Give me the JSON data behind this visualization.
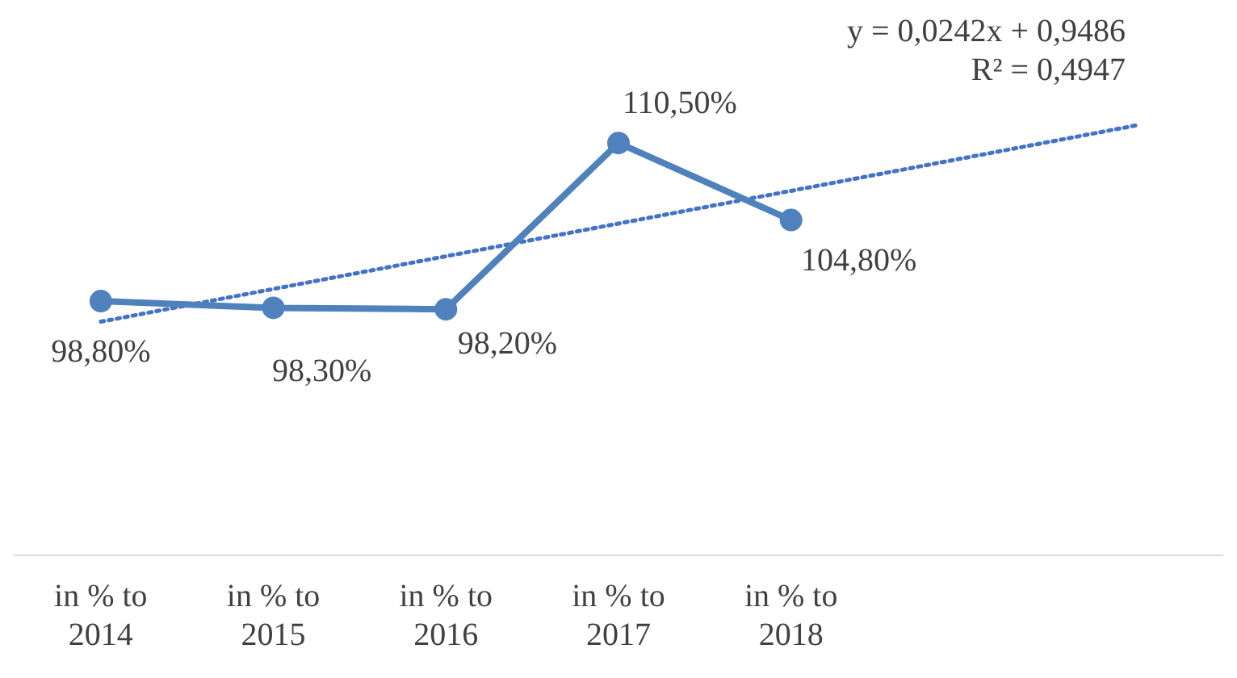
{
  "chart_data": {
    "type": "line",
    "categories": [
      "in % to 2014",
      "in % to 2015",
      "in % to 2016",
      "in % to 2017",
      "in % to 2018",
      null,
      null
    ],
    "series": [
      {
        "color": "#4f81bd",
        "values": [
          98.8,
          98.3,
          98.2,
          110.5,
          104.8,
          null,
          null
        ],
        "value_labels": [
          "98,80%",
          "98,30%",
          "98,20%",
          "110,50%",
          "104,80%",
          null,
          null
        ],
        "marker": "circle",
        "line_style": "solid"
      },
      {
        "type": "line",
        "color": "#4472c4",
        "values": [
          97.28,
          99.7,
          102.12,
          104.54,
          106.96,
          109.38,
          111.8
        ],
        "marker": "none",
        "line_style": "dotted"
      }
    ],
    "annotations": [
      "y = 0,0242x + 0,9486",
      "R² = 0,4947"
    ],
    "grid": false,
    "legend": false
  }
}
